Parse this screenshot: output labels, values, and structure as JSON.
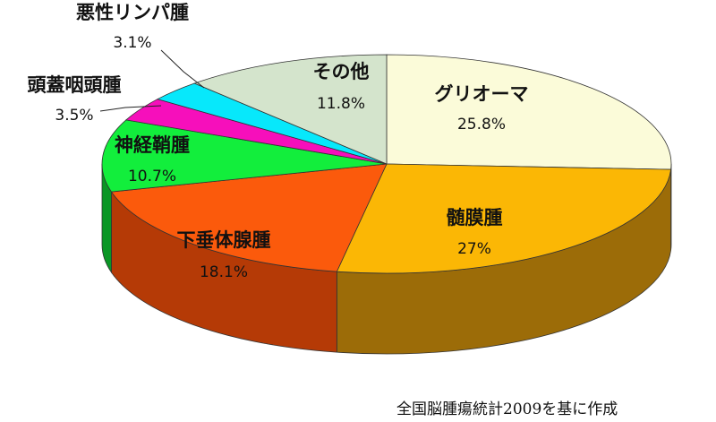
{
  "chart_data": {
    "type": "pie",
    "categories": [
      "グリオーマ",
      "髄膜腫",
      "下垂体腺腫",
      "神経鞘腫",
      "頭蓋咽頭腫",
      "悪性リンパ腫",
      "その他"
    ],
    "values": [
      25.8,
      27,
      18.1,
      10.7,
      3.5,
      3.1,
      11.8
    ],
    "value_labels": [
      "25.8%",
      "27%",
      "18.1%",
      "10.7%",
      "3.5%",
      "3.1%",
      "11.8%"
    ],
    "colors": [
      "#fbfbd9",
      "#fbb705",
      "#fb5a0c",
      "#12ee3c",
      "#f60fbb",
      "#07e8fb",
      "#d4e4cc"
    ],
    "side_colors": [
      "#9a9a78",
      "#9c6c08",
      "#b53a06",
      "#0a9625",
      "#a30a7a",
      "#06a0ad",
      "#8fa08a"
    ],
    "legend": "none",
    "style": "3d"
  },
  "source_note": "全国脳腫瘍統計2009を基に作成"
}
